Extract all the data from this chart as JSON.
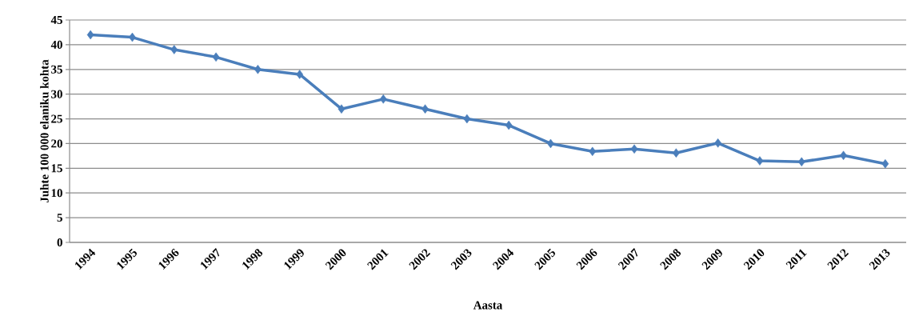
{
  "chart_data": {
    "type": "line",
    "xlabel": "Aasta",
    "ylabel": "Juhte 100 000 elaniku kohta",
    "categories": [
      "1994",
      "1995",
      "1996",
      "1997",
      "1998",
      "1999",
      "2000",
      "2001",
      "2002",
      "2003",
      "2004",
      "2005",
      "2006",
      "2007",
      "2008",
      "2009",
      "2010",
      "2011",
      "2012",
      "2013"
    ],
    "series": [
      {
        "color": "#4a7ebb",
        "values": [
          42,
          41.5,
          39,
          37.5,
          35,
          34,
          27,
          29,
          27,
          25,
          23.7,
          20,
          18.4,
          18.9,
          18.1,
          20.1,
          16.5,
          16.3,
          17.6,
          15.9
        ]
      }
    ],
    "ylim": [
      0,
      45
    ],
    "yticks": [
      0,
      5,
      10,
      15,
      20,
      25,
      30,
      35,
      40,
      45
    ],
    "grid": "y",
    "marker": "diamond",
    "line_style": "solid"
  }
}
